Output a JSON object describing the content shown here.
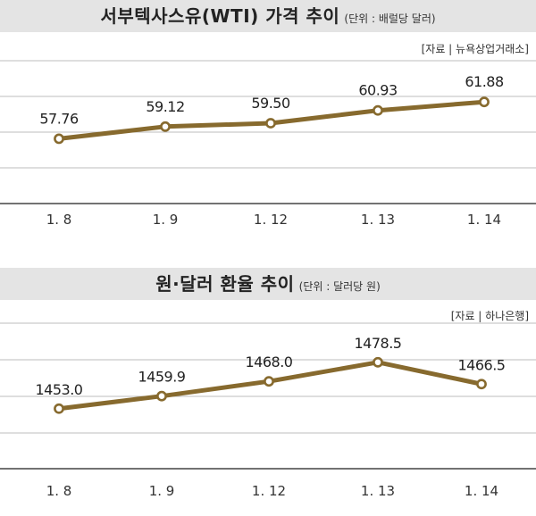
{
  "chart_data": [
    {
      "type": "line",
      "title": "서부텍사스유(WTI) 가격 추이",
      "unit": "(단위 : 배럴당 달러)",
      "source": "[자료 | 뉴욕상업거래소]",
      "categories": [
        "1. 8",
        "1. 9",
        "1. 12",
        "1. 13",
        "1. 14"
      ],
      "values": [
        57.76,
        59.12,
        59.5,
        60.93,
        61.88
      ],
      "value_labels": [
        "57.76",
        "59.12",
        "59.50",
        "60.93",
        "61.88"
      ],
      "ylim": [
        50.5,
        66.5
      ],
      "series_color": "#876a2e"
    },
    {
      "type": "line",
      "title": "원·달러 환율 추이",
      "unit": "(단위 : 달러당 원)",
      "source": "[자료 | 하나은행]",
      "categories": [
        "1. 8",
        "1. 9",
        "1. 12",
        "1. 13",
        "1. 14"
      ],
      "values": [
        1453.0,
        1459.9,
        1468.0,
        1478.5,
        1466.5
      ],
      "value_labels": [
        "1453.0",
        "1459.9",
        "1468.0",
        "1478.5",
        "1466.5"
      ],
      "ylim": [
        1420,
        1500
      ],
      "series_color": "#876a2e"
    }
  ]
}
